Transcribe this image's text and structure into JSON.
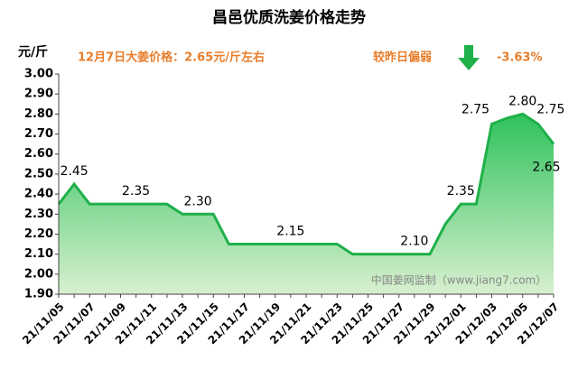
{
  "chart_data": {
    "type": "area",
    "title": "昌邑优质洗姜价格走势",
    "y_axis_label": "元/斤",
    "annotations": [
      "12月7日大姜价格：2.65元/斤左右",
      "较昨日偏弱",
      "-3.63%"
    ],
    "watermark": "中国姜网监制（www.jiang7.com）",
    "categories": [
      "21/11/05",
      null,
      "21/11/07",
      null,
      "21/11/09",
      null,
      "21/11/11",
      null,
      "21/11/13",
      null,
      "21/11/15",
      null,
      "21/11/17",
      null,
      "21/11/19",
      null,
      "21/11/21",
      null,
      "21/11/23",
      null,
      "21/11/25",
      null,
      "21/11/27",
      null,
      "21/11/29",
      null,
      "21/12/01",
      null,
      "21/12/03",
      null,
      "21/12/05",
      null,
      "21/12/07"
    ],
    "values": [
      2.35,
      2.45,
      2.35,
      2.35,
      2.35,
      2.35,
      2.35,
      2.35,
      2.3,
      2.3,
      2.3,
      2.15,
      2.15,
      2.15,
      2.15,
      2.15,
      2.15,
      2.15,
      2.15,
      2.1,
      2.1,
      2.1,
      2.1,
      2.1,
      2.1,
      2.25,
      2.35,
      2.35,
      2.75,
      2.78,
      2.8,
      2.75,
      2.65
    ],
    "value_labels": [
      null,
      "2.45",
      null,
      null,
      null,
      "2.35",
      null,
      null,
      null,
      "2.30",
      null,
      null,
      null,
      null,
      null,
      "2.15",
      null,
      null,
      null,
      null,
      null,
      null,
      null,
      "2.10",
      null,
      null,
      "2.35",
      null,
      "2.75",
      null,
      "2.80",
      "2.75",
      "2.65"
    ],
    "color": "#1fb04a",
    "ylim": [
      1.9,
      3.0
    ],
    "yticks": [
      {
        "value": 1.9,
        "label": "1.90"
      },
      {
        "value": 2.0,
        "label": "2.00"
      },
      {
        "value": 2.1,
        "label": "2.10"
      },
      {
        "value": 2.2,
        "label": "2.20"
      },
      {
        "value": 2.3,
        "label": "2.30"
      },
      {
        "value": 2.4,
        "label": "2.40"
      },
      {
        "value": 2.5,
        "label": "2.50"
      },
      {
        "value": 2.6,
        "label": "2.60"
      },
      {
        "value": 2.7,
        "label": "2.70"
      },
      {
        "value": 2.8,
        "label": "2.80"
      },
      {
        "value": 2.9,
        "label": "2.90"
      },
      {
        "value": 3.0,
        "label": "3.00"
      }
    ],
    "grid": false
  }
}
